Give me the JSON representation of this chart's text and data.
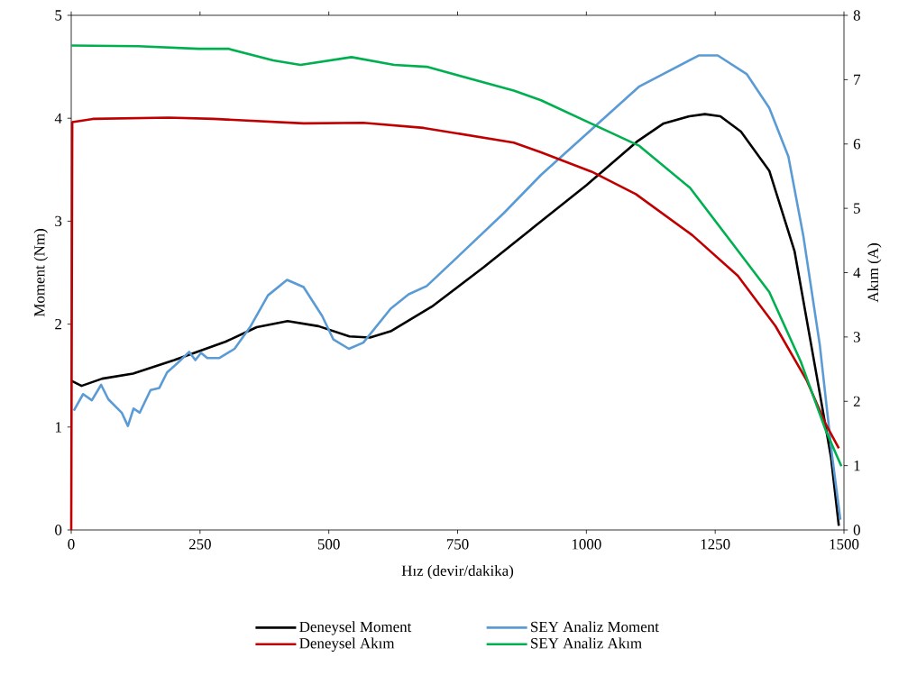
{
  "chart_data": {
    "type": "line",
    "xlabel": "Hız (devir/dakika)",
    "ylabel": "Moment (Nm)",
    "y2label": "Akım (A)",
    "xlim": [
      0,
      1500
    ],
    "xticks": [
      0,
      250,
      500,
      750,
      1000,
      1250,
      1500
    ],
    "ylim": [
      0,
      5
    ],
    "yticks": [
      0,
      1,
      2,
      3,
      4,
      5
    ],
    "y2lim": [
      0,
      8
    ],
    "y2ticks": [
      0,
      1,
      2,
      3,
      4,
      5,
      6,
      7,
      8
    ],
    "grid": false,
    "legend": "bottom",
    "marker": "none",
    "line_style": "solid",
    "series": [
      {
        "name": "Deneysel Moment",
        "color": "#000000",
        "x": [
          0,
          20,
          60,
          120,
          200,
          300,
          360,
          420,
          480,
          540,
          580,
          620,
          700,
          800,
          900,
          1000,
          1100,
          1150,
          1200,
          1230,
          1260,
          1300,
          1355,
          1404,
          1453,
          1475,
          1490
        ],
        "values": [
          1.45,
          1.4,
          1.47,
          1.52,
          1.65,
          1.83,
          1.97,
          2.03,
          1.98,
          1.88,
          1.87,
          1.93,
          2.17,
          2.55,
          2.95,
          3.35,
          3.78,
          3.95,
          4.02,
          4.04,
          4.02,
          3.87,
          3.49,
          2.71,
          1.33,
          0.7,
          0.04
        ]
      },
      {
        "name": "SEY Analiz Moment",
        "color": "#5b9bd5",
        "x": [
          5,
          23,
          40,
          58,
          72,
          98,
          110,
          121,
          133,
          154,
          171,
          186,
          206,
          229,
          241,
          252,
          264,
          287,
          317,
          347,
          382,
          419,
          451,
          487,
          509,
          539,
          567,
          620,
          655,
          690,
          760,
          840,
          912,
          1103,
          1218,
          1255,
          1311,
          1355,
          1392,
          1421,
          1453,
          1477,
          1493
        ],
        "values": [
          1.16,
          1.32,
          1.26,
          1.41,
          1.27,
          1.14,
          1.01,
          1.18,
          1.14,
          1.36,
          1.38,
          1.53,
          1.62,
          1.73,
          1.65,
          1.72,
          1.67,
          1.67,
          1.76,
          1.97,
          2.28,
          2.43,
          2.36,
          2.08,
          1.85,
          1.76,
          1.82,
          2.15,
          2.29,
          2.37,
          2.7,
          3.08,
          3.45,
          4.31,
          4.61,
          4.61,
          4.43,
          4.1,
          3.63,
          2.86,
          1.8,
          0.72,
          0.1
        ]
      },
      {
        "name": "Deneysel Akım",
        "color": "#c00000",
        "axis": "y2",
        "x": [
          0,
          2,
          42,
          189,
          276,
          451,
          567,
          684,
          859,
          912,
          1010,
          1096,
          1206,
          1294,
          1367,
          1428,
          1465,
          1490
        ],
        "values": [
          0,
          6.34,
          6.39,
          6.41,
          6.39,
          6.32,
          6.33,
          6.25,
          6.02,
          5.87,
          5.57,
          5.22,
          4.58,
          3.95,
          3.17,
          2.32,
          1.64,
          1.27
        ]
      },
      {
        "name": "SEY Analiz Akım",
        "color": "#00b050",
        "axis": "y2",
        "x": [
          0,
          130,
          247,
          305,
          392,
          445,
          544,
          627,
          690,
          859,
          912,
          1017,
          1103,
          1201,
          1281,
          1355,
          1416,
          1465,
          1495
        ],
        "values": [
          7.53,
          7.52,
          7.48,
          7.48,
          7.3,
          7.23,
          7.35,
          7.23,
          7.2,
          6.83,
          6.68,
          6.29,
          5.97,
          5.32,
          4.48,
          3.7,
          2.62,
          1.54,
          0.99
        ]
      }
    ]
  }
}
